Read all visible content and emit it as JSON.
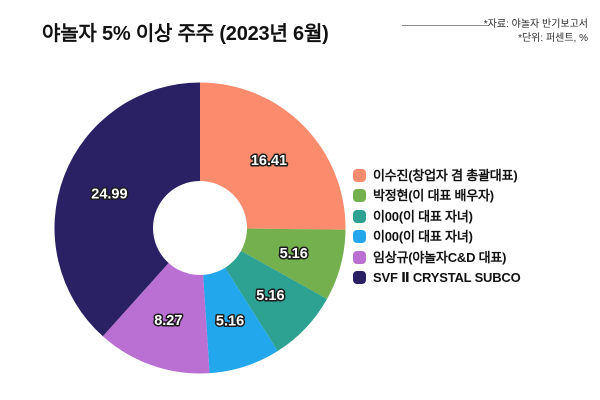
{
  "title": "야놀자 5% 이상 주주 (2023년 6월)",
  "notes": {
    "source": "*자료: 야놀자 반기보고서",
    "unit": "*단위: 퍼센트, %"
  },
  "colors": {
    "background": "#ffffff",
    "title_text": "#111111",
    "note_text": "#2b2b2b",
    "divider": "#8c8c8c",
    "value_label_fill": "#ffffff",
    "value_label_outline": "#1c1c1c",
    "hole": "#ffffff"
  },
  "chart_data": {
    "type": "pie",
    "donut": true,
    "start_angle_deg": 0,
    "direction": "clockwise",
    "unit": "percent",
    "title": "야놀자 5% 이상 주주 (2023년 6월)",
    "legend_position": "right",
    "categories": [
      "이수진(창업자 겸 총괄대표)",
      "박정현(이 대표 배우자)",
      "이00(이 대표 자녀)",
      "이00(이 대표 자녀)",
      "임상규(야놀자C&D 대표)",
      "SVF Ⅱ CRYSTAL SUBCO"
    ],
    "values": [
      16.41,
      5.16,
      5.16,
      5.16,
      8.27,
      24.99
    ],
    "value_labels": [
      "16.41",
      "5.16",
      "5.16",
      "5.16",
      "8.27",
      "24.99"
    ],
    "colors": [
      "#fa8b6d",
      "#74b14e",
      "#2ea292",
      "#23a7ec",
      "#ba70d2",
      "#2a2064"
    ]
  }
}
